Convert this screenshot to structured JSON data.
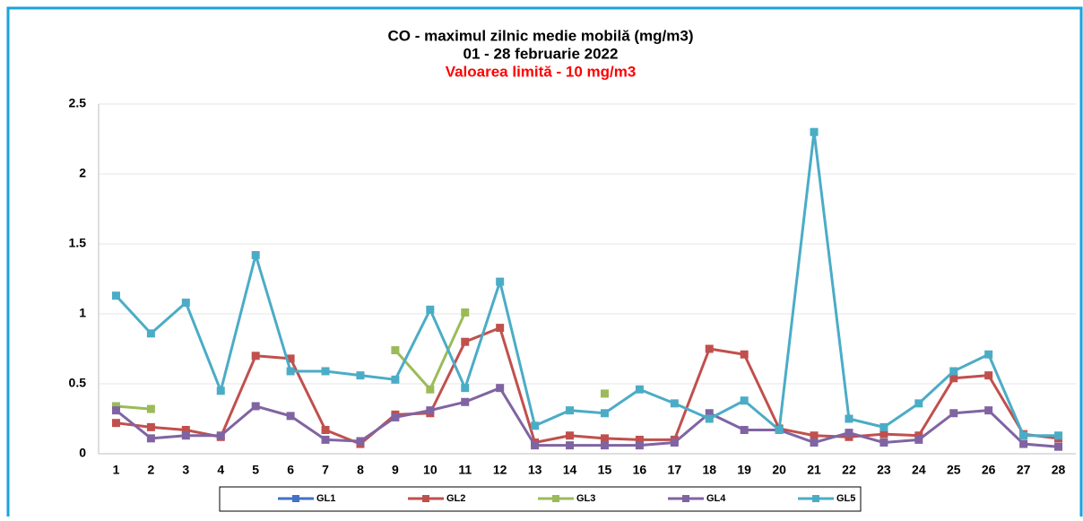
{
  "chart_data": {
    "type": "line",
    "title": "CO - maximul zilnic medie mobilă (mg/m3)",
    "subtitle": "01 - 28 februarie 2022",
    "annotation": "Valoarea limită - 10 mg/m3",
    "categories": [
      "1",
      "2",
      "3",
      "4",
      "5",
      "6",
      "7",
      "8",
      "9",
      "10",
      "11",
      "12",
      "13",
      "14",
      "15",
      "16",
      "17",
      "18",
      "19",
      "20",
      "21",
      "22",
      "23",
      "24",
      "25",
      "26",
      "27",
      "28"
    ],
    "series": [
      {
        "name": "GL1",
        "color": "#4472c4",
        "values": [
          null,
          null,
          null,
          null,
          null,
          null,
          null,
          null,
          null,
          null,
          null,
          null,
          null,
          null,
          null,
          null,
          null,
          null,
          null,
          null,
          null,
          null,
          null,
          null,
          null,
          null,
          null,
          null
        ]
      },
      {
        "name": "GL2",
        "color": "#c0504d",
        "values": [
          0.22,
          0.19,
          0.17,
          0.12,
          0.7,
          0.68,
          0.17,
          0.07,
          0.28,
          0.29,
          0.8,
          0.9,
          0.08,
          0.13,
          0.11,
          0.1,
          0.1,
          0.75,
          0.71,
          0.18,
          0.13,
          0.12,
          0.14,
          0.13,
          0.54,
          0.56,
          0.14,
          0.11
        ]
      },
      {
        "name": "GL3",
        "color": "#9bbb59",
        "values": [
          0.34,
          0.32,
          null,
          null,
          null,
          null,
          null,
          null,
          0.74,
          0.46,
          1.01,
          null,
          null,
          null,
          0.43,
          null,
          null,
          null,
          null,
          null,
          null,
          null,
          null,
          null,
          null,
          null,
          null,
          null
        ]
      },
      {
        "name": "GL4",
        "color": "#8064a2",
        "values": [
          0.31,
          0.11,
          0.13,
          0.13,
          0.34,
          0.27,
          0.1,
          0.09,
          0.26,
          0.31,
          0.37,
          0.47,
          0.06,
          0.06,
          0.06,
          0.06,
          0.08,
          0.29,
          0.17,
          0.17,
          0.08,
          0.15,
          0.08,
          0.1,
          0.29,
          0.31,
          0.07,
          0.05
        ]
      },
      {
        "name": "GL5",
        "color": "#4bacc6",
        "values": [
          1.13,
          0.86,
          1.08,
          0.45,
          1.42,
          0.59,
          0.59,
          0.56,
          0.53,
          1.03,
          0.47,
          1.23,
          0.2,
          0.31,
          0.29,
          0.46,
          0.36,
          0.25,
          0.38,
          0.17,
          2.3,
          0.25,
          0.19,
          0.36,
          0.59,
          0.71,
          0.13,
          0.13
        ]
      }
    ],
    "ylim": [
      0,
      2.5
    ],
    "yticks": [
      0,
      0.5,
      1,
      1.5,
      2,
      2.5
    ],
    "grid": true,
    "legend": "bottom"
  }
}
